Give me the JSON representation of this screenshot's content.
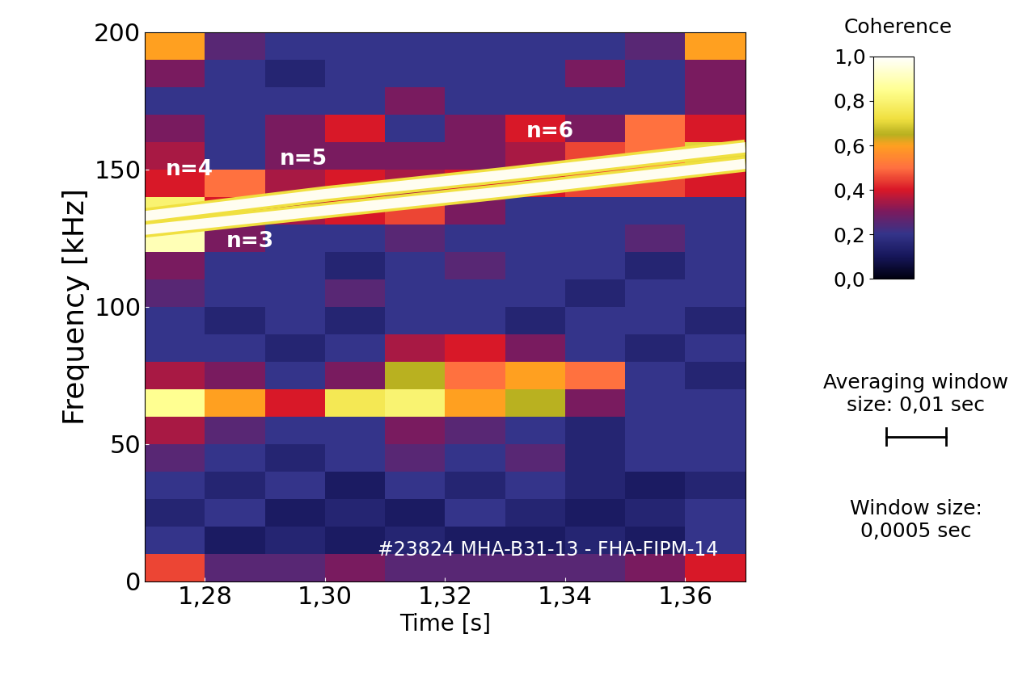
{
  "chart_data": {
    "type": "heatmap",
    "x_label": "Time [s]",
    "y_label": "Frequency [kHz]",
    "xlim": [
      1.27,
      1.37
    ],
    "ylim": [
      0,
      200
    ],
    "xticks": [
      {
        "value": 1.28,
        "label": "1,28"
      },
      {
        "value": 1.3,
        "label": "1,30"
      },
      {
        "value": 1.32,
        "label": "1,32"
      },
      {
        "value": 1.34,
        "label": "1,34"
      },
      {
        "value": 1.36,
        "label": "1,36"
      }
    ],
    "yticks": [
      0,
      50,
      100,
      150,
      200
    ],
    "cells": {
      "x": [
        1.27,
        1.28,
        1.29,
        1.3,
        1.31,
        1.32,
        1.33,
        1.34,
        1.35,
        1.36,
        1.37
      ],
      "y": [
        0,
        10,
        20,
        30,
        40,
        50,
        60,
        70,
        80,
        90,
        100,
        110,
        120,
        130,
        140,
        150,
        160,
        170,
        180,
        190,
        200
      ],
      "values": [
        [
          0.45,
          0.25,
          0.25,
          0.3,
          0.25,
          0.25,
          0.25,
          0.25,
          0.3,
          0.4
        ],
        [
          0.2,
          0.12,
          0.15,
          0.12,
          0.15,
          0.12,
          0.12,
          0.15,
          0.12,
          0.2
        ],
        [
          0.15,
          0.2,
          0.12,
          0.15,
          0.12,
          0.2,
          0.15,
          0.12,
          0.15,
          0.2
        ],
        [
          0.2,
          0.15,
          0.2,
          0.12,
          0.2,
          0.15,
          0.2,
          0.15,
          0.12,
          0.15
        ],
        [
          0.25,
          0.2,
          0.15,
          0.2,
          0.25,
          0.2,
          0.25,
          0.15,
          0.2,
          0.2
        ],
        [
          0.35,
          0.25,
          0.2,
          0.2,
          0.3,
          0.25,
          0.2,
          0.15,
          0.2,
          0.2
        ],
        [
          0.85,
          0.6,
          0.4,
          0.75,
          0.8,
          0.6,
          0.65,
          0.3,
          0.2,
          0.2
        ],
        [
          0.35,
          0.3,
          0.2,
          0.3,
          0.65,
          0.5,
          0.6,
          0.5,
          0.2,
          0.15
        ],
        [
          0.2,
          0.2,
          0.15,
          0.2,
          0.35,
          0.4,
          0.3,
          0.2,
          0.15,
          0.2
        ],
        [
          0.2,
          0.15,
          0.2,
          0.15,
          0.2,
          0.2,
          0.15,
          0.2,
          0.2,
          0.15
        ],
        [
          0.25,
          0.2,
          0.2,
          0.25,
          0.2,
          0.2,
          0.2,
          0.15,
          0.2,
          0.2
        ],
        [
          0.3,
          0.2,
          0.2,
          0.15,
          0.2,
          0.25,
          0.2,
          0.2,
          0.15,
          0.2
        ],
        [
          0.9,
          0.3,
          0.2,
          0.2,
          0.25,
          0.2,
          0.2,
          0.2,
          0.25,
          0.2
        ],
        [
          0.8,
          0.4,
          0.35,
          0.4,
          0.45,
          0.3,
          0.2,
          0.2,
          0.2,
          0.2
        ],
        [
          0.4,
          0.5,
          0.35,
          0.4,
          0.35,
          0.4,
          0.4,
          0.45,
          0.45,
          0.4
        ],
        [
          0.35,
          0.2,
          0.3,
          0.3,
          0.3,
          0.3,
          0.35,
          0.45,
          0.5,
          0.7
        ],
        [
          0.3,
          0.2,
          0.3,
          0.4,
          0.2,
          0.3,
          0.4,
          0.3,
          0.5,
          0.4
        ],
        [
          0.2,
          0.2,
          0.2,
          0.2,
          0.3,
          0.2,
          0.2,
          0.2,
          0.2,
          0.3
        ],
        [
          0.3,
          0.2,
          0.15,
          0.2,
          0.2,
          0.2,
          0.2,
          0.3,
          0.2,
          0.3
        ],
        [
          0.6,
          0.25,
          0.2,
          0.2,
          0.2,
          0.2,
          0.2,
          0.2,
          0.25,
          0.6
        ]
      ]
    },
    "series": [
      {
        "x": [
          1.27,
          1.3,
          1.33,
          1.37
        ],
        "values": [
          133,
          141,
          148,
          158
        ],
        "color": "#fffdf0"
      },
      {
        "x": [
          1.27,
          1.3,
          1.33,
          1.37
        ],
        "values": [
          128,
          135,
          142,
          152
        ],
        "color": "#fffdf0"
      }
    ],
    "annotations": [
      {
        "text": "n=4",
        "x": 1.2735,
        "y": 146
      },
      {
        "text": "n=3",
        "x": 1.2835,
        "y": 120
      },
      {
        "text": "n=5",
        "x": 1.2925,
        "y": 150
      },
      {
        "text": "n=6",
        "x": 1.3335,
        "y": 160
      },
      {
        "text": "#23824 MHA-B31-13 - FHA-FIPM-14",
        "x": 1.3655,
        "y": 8
      }
    ],
    "colorbar": {
      "label": "Coherence",
      "range": [
        0,
        1
      ],
      "ticks": [
        {
          "value": 0.0,
          "label": "0,0"
        },
        {
          "value": 0.2,
          "label": "0,2"
        },
        {
          "value": 0.4,
          "label": "0,4"
        },
        {
          "value": 0.6,
          "label": "0,6"
        },
        {
          "value": 0.8,
          "label": "0,8"
        },
        {
          "value": 1.0,
          "label": "1,0"
        }
      ]
    },
    "averaging_window": {
      "text": "Averaging window\nsize: 0,01 sec",
      "length": 0.01
    },
    "window_text": "Window size:\n0,0005 sec"
  }
}
